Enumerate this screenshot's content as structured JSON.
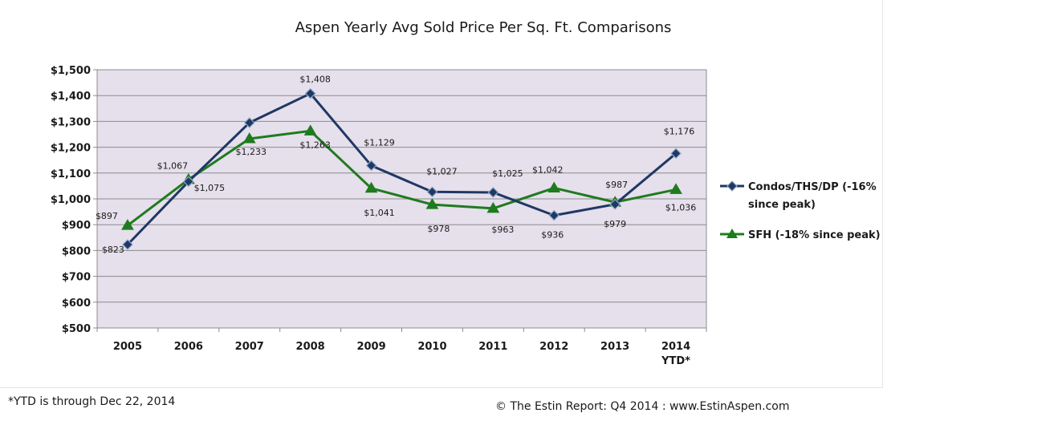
{
  "chart_data": {
    "type": "line",
    "title": "Aspen Yearly Avg Sold Price Per Sq. Ft. Comparisons",
    "xlabel": "",
    "ylabel": "",
    "categories": [
      "2005",
      "2006",
      "2007",
      "2008",
      "2009",
      "2010",
      "2011",
      "2012",
      "2013",
      "2014"
    ],
    "category_sublabels": [
      "",
      "",
      "",
      "",
      "",
      "",
      "",
      "",
      "",
      "YTD*"
    ],
    "ylim": [
      500,
      1500
    ],
    "y_ticks": [
      500,
      600,
      700,
      800,
      900,
      1000,
      1100,
      1200,
      1300,
      1400,
      1500
    ],
    "y_tick_labels": [
      "$500",
      "$600",
      "$700",
      "$800",
      "$900",
      "$1,000",
      "$1,100",
      "$1,200",
      "$1,300",
      "$1,400",
      "$1,500"
    ],
    "grid": true,
    "legend_position": "right",
    "series": [
      {
        "name": "Condos/THS/DP (-16% since peak)",
        "legend_lines": [
          "Condos/THS/DP (-16%",
          "since peak)"
        ],
        "marker": "diamond",
        "color": "#1f3864",
        "values": [
          823,
          1067,
          1295,
          1408,
          1129,
          1027,
          1025,
          936,
          979,
          1176
        ],
        "data_labels": [
          "$823",
          "$1,067",
          "",
          "$1,408",
          "$1,129",
          "$1,027",
          "$1,025",
          "$936",
          "$979",
          "$1,176"
        ]
      },
      {
        "name": "SFH (-18% since peak)",
        "legend_lines": [
          "SFH (-18% since peak)"
        ],
        "marker": "triangle",
        "color": "#1e7b1e",
        "values": [
          897,
          1075,
          1233,
          1263,
          1041,
          978,
          963,
          1042,
          987,
          1036
        ],
        "data_labels": [
          "$897",
          "$1,075",
          "$1,233",
          "$1,263",
          "$1,041",
          "$978",
          "$963",
          "$1,042",
          "$987",
          "$1,036"
        ]
      }
    ],
    "plot_background": "#e6dfec",
    "gridline_color": "#8c8c8c"
  },
  "footer": {
    "ytd_note": "*YTD is through Dec 22, 2014",
    "credit": "© The Estin Report: Q4 2014 : www.EstinAspen.com"
  }
}
